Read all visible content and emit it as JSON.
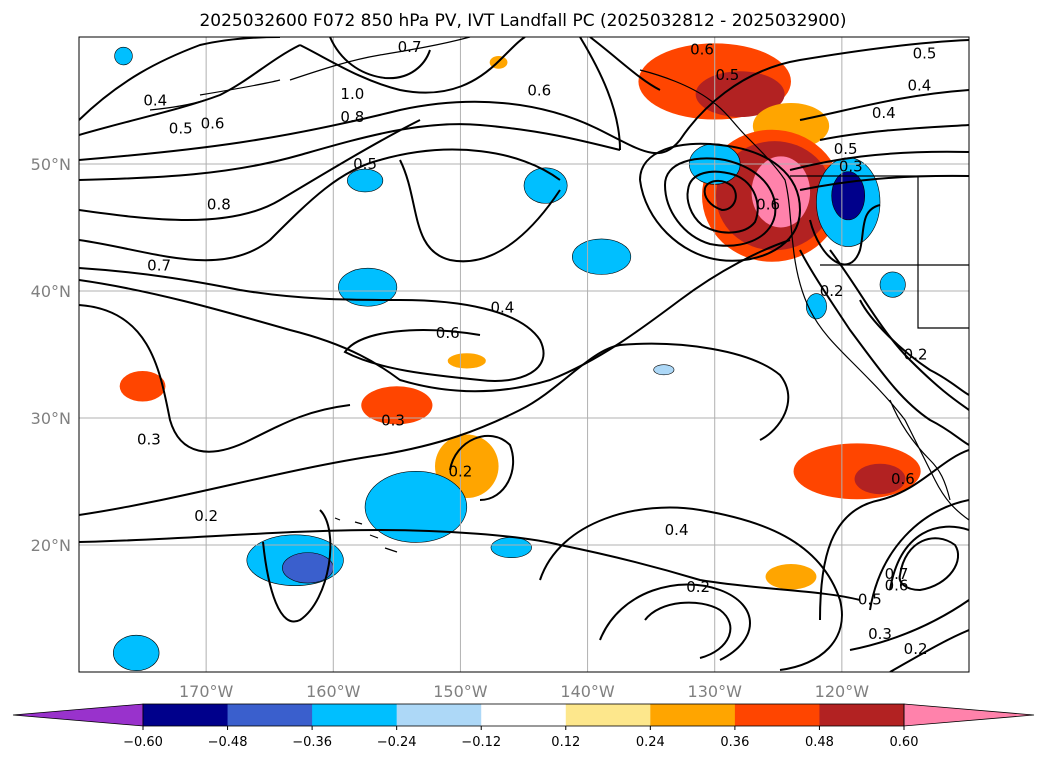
{
  "chart_data": {
    "type": "map-contour",
    "title": "2025032600 F072 850 hPa PV, IVT Landfall PC (2025032812 - 2025032900)",
    "lon_range": [
      -180,
      -110
    ],
    "lat_range": [
      10,
      60
    ],
    "grid": true,
    "x_tick_labels": [
      {
        "lon": -170,
        "text": "170°W"
      },
      {
        "lon": -160,
        "text": "160°W"
      },
      {
        "lon": -150,
        "text": "150°W"
      },
      {
        "lon": -140,
        "text": "140°W"
      },
      {
        "lon": -130,
        "text": "130°W"
      },
      {
        "lon": -120,
        "text": "120°W"
      }
    ],
    "y_tick_labels": [
      {
        "lat": 20,
        "text": "20°N"
      },
      {
        "lat": 30,
        "text": "30°N"
      },
      {
        "lat": 40,
        "text": "40°N"
      },
      {
        "lat": 50,
        "text": "50°N"
      }
    ],
    "colorbar": {
      "orientation": "horizontal",
      "extend": "both",
      "bounds": [
        -0.72,
        -0.6,
        -0.48,
        -0.36,
        -0.24,
        -0.12,
        0.12,
        0.24,
        0.36,
        0.48,
        0.6,
        0.72
      ],
      "colors": [
        "#9932cc",
        "#00008b",
        "#3a5fcd",
        "#00bfff",
        "#add8f7",
        "#ffffff",
        "#fde78c",
        "#ffa500",
        "#ff4500",
        "#b22222",
        "#ff82ab"
      ],
      "tick_labels": [
        "−0.60",
        "−0.48",
        "−0.36",
        "−0.24",
        "−0.12",
        "0.12",
        "0.24",
        "0.36",
        "0.48",
        "0.60"
      ]
    },
    "shaded_blobs": [
      {
        "lon": -130,
        "lat": 56.5,
        "rx_deg": 6,
        "ry_deg": 3.0,
        "value": 0.36
      },
      {
        "lon": -128,
        "lat": 55.5,
        "rx_deg": 3.5,
        "ry_deg": 1.8,
        "value": 0.48
      },
      {
        "lon": -124,
        "lat": 53.0,
        "rx_deg": 3,
        "ry_deg": 1.8,
        "value": 0.3
      },
      {
        "lon": -125.5,
        "lat": 47.5,
        "rx_deg": 5.5,
        "ry_deg": 5.2,
        "value": 0.36
      },
      {
        "lon": -125.3,
        "lat": 47.5,
        "rx_deg": 4.6,
        "ry_deg": 4.3,
        "value": 0.48
      },
      {
        "lon": -124.8,
        "lat": 47.8,
        "rx_deg": 2.3,
        "ry_deg": 2.8,
        "value": 0.6
      },
      {
        "lon": -119.5,
        "lat": 47.0,
        "rx_deg": 2.5,
        "ry_deg": 3.5,
        "value": -0.36
      },
      {
        "lon": -119.5,
        "lat": 47.5,
        "rx_deg": 1.3,
        "ry_deg": 1.9,
        "value": -0.6
      },
      {
        "lon": -116,
        "lat": 40.5,
        "rx_deg": 1.0,
        "ry_deg": 1.0,
        "value": -0.3
      },
      {
        "lon": -118.8,
        "lat": 25.8,
        "rx_deg": 5,
        "ry_deg": 2.2,
        "value": 0.36
      },
      {
        "lon": -117,
        "lat": 25.2,
        "rx_deg": 2.0,
        "ry_deg": 1.2,
        "value": 0.48
      },
      {
        "lon": -130,
        "lat": 50.0,
        "rx_deg": 2,
        "ry_deg": 1.6,
        "value": -0.3
      },
      {
        "lon": -175,
        "lat": 32.5,
        "rx_deg": 1.8,
        "ry_deg": 1.2,
        "value": 0.36
      },
      {
        "lon": -170,
        "lat": 43,
        "rx_deg": 0,
        "ry_deg": 0,
        "value": 0
      },
      {
        "lon": -155,
        "lat": 31.0,
        "rx_deg": 2.8,
        "ry_deg": 1.5,
        "value": 0.36
      },
      {
        "lon": -149.5,
        "lat": 34.5,
        "rx_deg": 1.5,
        "ry_deg": 0.6,
        "value": 0.3
      },
      {
        "lon": -149.5,
        "lat": 26.2,
        "rx_deg": 2.5,
        "ry_deg": 2.5,
        "value": 0.3
      },
      {
        "lon": -124,
        "lat": 17.5,
        "rx_deg": 2,
        "ry_deg": 1.0,
        "value": 0.3
      },
      {
        "lon": -147.0,
        "lat": 58.0,
        "rx_deg": 0.7,
        "ry_deg": 0.5,
        "value": 0.3
      },
      {
        "lon": -157.3,
        "lat": 40.3,
        "rx_deg": 2.3,
        "ry_deg": 1.5,
        "value": -0.3
      },
      {
        "lon": -157.5,
        "lat": 48.7,
        "rx_deg": 1.4,
        "ry_deg": 0.9,
        "value": -0.3
      },
      {
        "lon": -143.3,
        "lat": 48.3,
        "rx_deg": 1.7,
        "ry_deg": 1.4,
        "value": -0.3
      },
      {
        "lon": -138.9,
        "lat": 42.7,
        "rx_deg": 2.3,
        "ry_deg": 1.4,
        "value": -0.3
      },
      {
        "lon": -153.5,
        "lat": 23.0,
        "rx_deg": 4,
        "ry_deg": 2.8,
        "value": -0.3
      },
      {
        "lon": -163,
        "lat": 18.8,
        "rx_deg": 3.8,
        "ry_deg": 2.0,
        "value": -0.3
      },
      {
        "lon": -162,
        "lat": 18.2,
        "rx_deg": 2.0,
        "ry_deg": 1.2,
        "value": -0.45
      },
      {
        "lon": -146,
        "lat": 19.8,
        "rx_deg": 1.6,
        "ry_deg": 0.8,
        "value": -0.3
      },
      {
        "lon": -175.5,
        "lat": 11.5,
        "rx_deg": 1.8,
        "ry_deg": 1.4,
        "value": -0.3
      },
      {
        "lon": -122,
        "lat": 38.8,
        "rx_deg": 0.8,
        "ry_deg": 1.0,
        "value": -0.3
      },
      {
        "lon": -176.5,
        "lat": 58.5,
        "rx_deg": 0.7,
        "ry_deg": 0.7,
        "value": -0.3
      },
      {
        "lon": -134,
        "lat": 33.8,
        "rx_deg": 0.8,
        "ry_deg": 0.4,
        "value": -0.2
      }
    ],
    "contour_labels": [
      {
        "text": "0.6",
        "lon": -131.0,
        "lat": 59.0
      },
      {
        "text": "0.5",
        "lon": -129.0,
        "lat": 57.0
      },
      {
        "text": "0.6",
        "lon": -143.8,
        "lat": 55.8
      },
      {
        "text": "1.0",
        "lon": -158.5,
        "lat": 55.5
      },
      {
        "text": "0.8",
        "lon": -158.5,
        "lat": 53.7
      },
      {
        "text": "0.6",
        "lon": -169.5,
        "lat": 53.2
      },
      {
        "text": "0.5",
        "lon": -172.0,
        "lat": 52.8
      },
      {
        "text": "0.4",
        "lon": -174.0,
        "lat": 55.0
      },
      {
        "text": "0.5",
        "lon": -157.5,
        "lat": 50.0
      },
      {
        "text": "0.8",
        "lon": -169.0,
        "lat": 46.8
      },
      {
        "text": "0.7",
        "lon": -173.7,
        "lat": 42.0
      },
      {
        "text": "0.4",
        "lon": -146.7,
        "lat": 38.7
      },
      {
        "text": "0.6",
        "lon": -151.0,
        "lat": 36.7
      },
      {
        "text": "0.3",
        "lon": -155.3,
        "lat": 29.8
      },
      {
        "text": "0.3",
        "lon": -174.5,
        "lat": 28.3
      },
      {
        "text": "0.2",
        "lon": -150.0,
        "lat": 25.8
      },
      {
        "text": "0.2",
        "lon": -170.0,
        "lat": 22.3
      },
      {
        "text": "0.4",
        "lon": -133.0,
        "lat": 21.2
      },
      {
        "text": "0.2",
        "lon": -131.3,
        "lat": 16.7
      },
      {
        "text": "0.6",
        "lon": -125.8,
        "lat": 46.8
      },
      {
        "text": "0.4",
        "lon": -113.9,
        "lat": 56.2
      },
      {
        "text": "0.4",
        "lon": -116.7,
        "lat": 54.0
      },
      {
        "text": "0.5",
        "lon": -113.5,
        "lat": 58.7
      },
      {
        "text": "0.5",
        "lon": -119.7,
        "lat": 51.2
      },
      {
        "text": "0.3",
        "lon": -119.3,
        "lat": 49.8
      },
      {
        "text": "0.2",
        "lon": -120.8,
        "lat": 40.0
      },
      {
        "text": "0.2",
        "lon": -114.2,
        "lat": 35.0
      },
      {
        "text": "0.6",
        "lon": -115.2,
        "lat": 25.2
      },
      {
        "text": "0.5",
        "lon": -117.8,
        "lat": 15.7
      },
      {
        "text": "0.6",
        "lon": -115.7,
        "lat": 16.8
      },
      {
        "text": "0.7",
        "lon": -115.7,
        "lat": 17.7
      },
      {
        "text": "0.3",
        "lon": -117.0,
        "lat": 13.0
      },
      {
        "text": "0.2",
        "lon": -114.2,
        "lat": 11.8
      },
      {
        "text": "0.7",
        "lon": -154.0,
        "lat": 59.2
      }
    ]
  }
}
